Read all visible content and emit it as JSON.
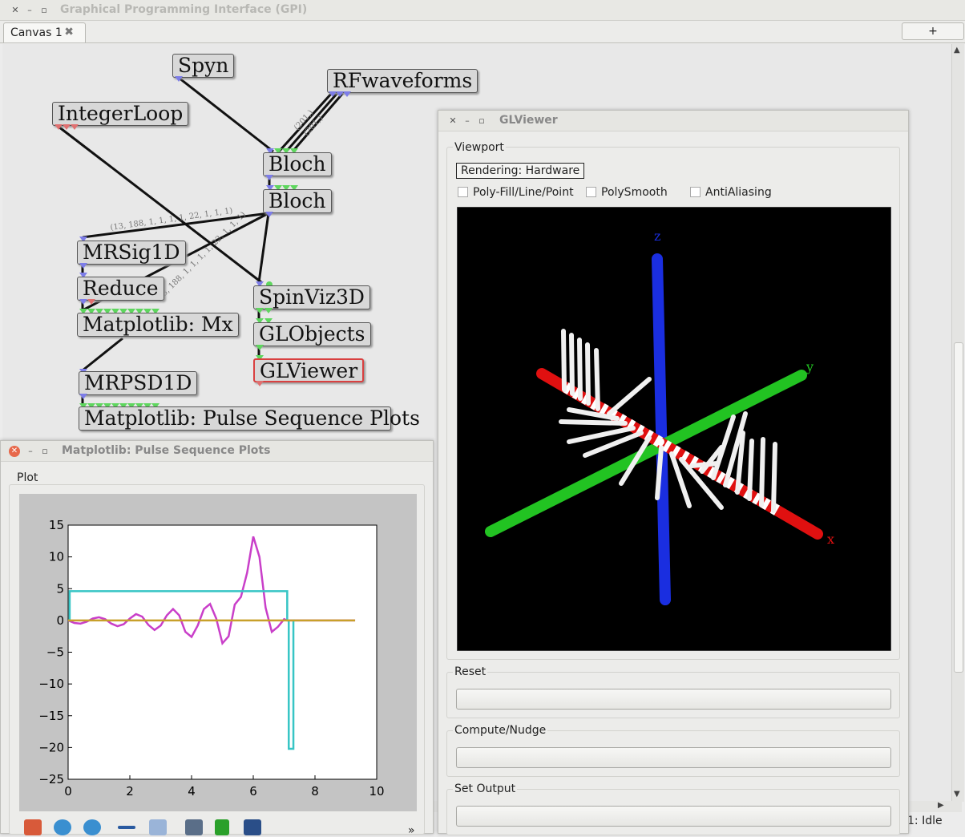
{
  "app": {
    "title": "Graphical Programming Interface (GPI)"
  },
  "tabs": [
    {
      "label": "Canvas 1"
    }
  ],
  "new_tab_label": "+",
  "status": "1: Idle",
  "nodes": {
    "spyn": "Spyn",
    "rfwaveforms": "RFwaveforms",
    "integerloop": "IntegerLoop",
    "bloch1": "Bloch",
    "bloch2": "Bloch",
    "mrsig1d": "MRSig1D",
    "reduce": "Reduce",
    "matplotlib_mx": "Matplotlib: Mx",
    "spinviz3d": "SpinViz3D",
    "globjects": "GLObjects",
    "glviewer": "GLViewer",
    "mrpsd1d": "MRPSD1D",
    "matplotlib_psp": "Matplotlib: Pulse Sequence Plots"
  },
  "wire_labels": {
    "bloch_mrsig": "(13, 188, 1, 1, 1, 1, 22, 1, 1, 1)",
    "bloch_mx": "(13, 188, 1, 1, 1, 1, 22, 1, 1, 1)",
    "rf_a": "(201,)",
    "rf_b": "(201,)"
  },
  "glviewer": {
    "title": "GLViewer",
    "viewport_label": "Viewport",
    "rendering": "Rendering: Hardware",
    "options": [
      "Poly-Fill/Line/Point",
      "PolySmooth",
      "AntiAliasing"
    ],
    "axis_x": "x",
    "axis_y": "y",
    "axis_z": "z",
    "reset_label": "Reset",
    "compute_label": "Compute/Nudge",
    "set_output_label": "Set Output",
    "colors": {
      "x_axis": "#e01010",
      "y_axis": "#22c322",
      "z_axis": "#1a2ee0"
    }
  },
  "plotwin": {
    "title": "Matplotlib: Pulse Sequence Plots",
    "plot_label": "Plot",
    "more": "»",
    "toolbar_icons": [
      "home-icon",
      "back-icon",
      "forward-icon",
      "pan-icon",
      "zoom-icon",
      "subplots-icon",
      "check-icon",
      "save-icon"
    ]
  },
  "chart_data": {
    "type": "line",
    "title": "",
    "xlabel": "",
    "ylabel": "",
    "xlim": [
      0,
      10
    ],
    "ylim": [
      -25,
      15
    ],
    "xticks": [
      "0",
      "2",
      "4",
      "6",
      "8",
      "10"
    ],
    "yticks": [
      "15",
      "10",
      "5",
      "0",
      "−5",
      "−10",
      "−15",
      "−20",
      "−25"
    ],
    "series": [
      {
        "color": "#c93fc9",
        "x": [
          0.0,
          0.2,
          0.4,
          0.6,
          0.8,
          1.0,
          1.2,
          1.4,
          1.6,
          1.8,
          2.0,
          2.2,
          2.4,
          2.6,
          2.8,
          3.0,
          3.2,
          3.4,
          3.6,
          3.8,
          4.0,
          4.2,
          4.4,
          4.6,
          4.8,
          5.0,
          5.2,
          5.4,
          5.6,
          5.8,
          6.0,
          6.2,
          6.4,
          6.6,
          6.8,
          7.0,
          7.1,
          7.5,
          8.0,
          9.3
        ],
        "y": [
          0,
          -0.4,
          -0.5,
          -0.2,
          0.3,
          0.5,
          0.2,
          -0.5,
          -0.9,
          -0.6,
          0.3,
          1.0,
          0.6,
          -0.7,
          -1.5,
          -0.8,
          0.8,
          1.8,
          0.8,
          -1.8,
          -2.6,
          -0.8,
          1.8,
          2.6,
          0.3,
          -3.6,
          -2.5,
          2.5,
          3.7,
          7.5,
          13.2,
          10.0,
          2.0,
          -1.8,
          -1.0,
          0.2,
          0,
          0,
          0,
          0
        ]
      },
      {
        "color": "#37c5c5",
        "x": [
          0.0,
          0.05,
          0.05,
          7.1,
          7.1,
          7.15,
          7.15,
          7.3,
          7.3,
          7.35
        ],
        "y": [
          0,
          0,
          4.6,
          4.6,
          0,
          0,
          -20.2,
          -20.2,
          0,
          0
        ]
      },
      {
        "color": "#c8a02a",
        "x": [
          0.0,
          9.3
        ],
        "y": [
          0,
          0
        ]
      }
    ]
  }
}
